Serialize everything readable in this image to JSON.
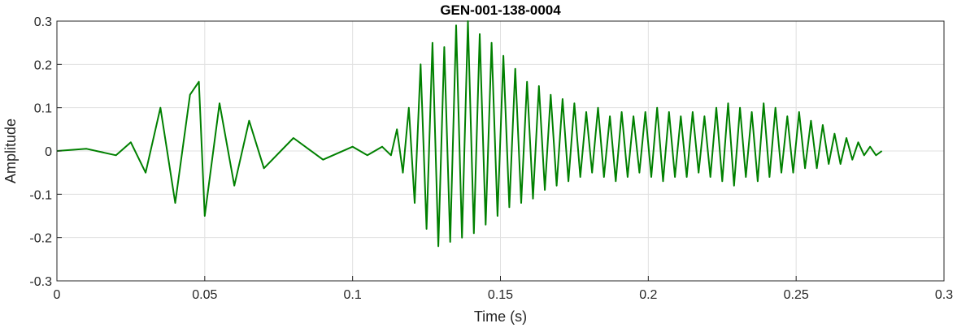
{
  "chart_data": {
    "type": "line",
    "title": "GEN-001-138-0004",
    "xlabel": "Time (s)",
    "ylabel": "Amplitude",
    "xlim": [
      0,
      0.3
    ],
    "ylim": [
      -0.3,
      0.3
    ],
    "xticks": [
      0,
      0.05,
      0.1,
      0.15,
      0.2,
      0.25,
      0.3
    ],
    "yticks": [
      -0.3,
      -0.2,
      -0.1,
      0,
      0.1,
      0.2,
      0.3
    ],
    "xtick_labels": [
      "0",
      "0.05",
      "0.1",
      "0.15",
      "0.2",
      "0.25",
      "0.3"
    ],
    "ytick_labels": [
      "-0.3",
      "-0.2",
      "-0.1",
      "0",
      "0.1",
      "0.2",
      "0.3"
    ],
    "grid": true,
    "colors": {
      "series": "#008000",
      "grid": "#e0e0e0",
      "axes": "#262626"
    },
    "series": [
      {
        "x": [
          0.0,
          0.01,
          0.02,
          0.025,
          0.03,
          0.035,
          0.04,
          0.045,
          0.048,
          0.05,
          0.055,
          0.06,
          0.065,
          0.07,
          0.08,
          0.09,
          0.1,
          0.105,
          0.11,
          0.113,
          0.115,
          0.117,
          0.119,
          0.121,
          0.123,
          0.125,
          0.127,
          0.129,
          0.131,
          0.133,
          0.135,
          0.137,
          0.139,
          0.141,
          0.143,
          0.145,
          0.147,
          0.149,
          0.151,
          0.153,
          0.155,
          0.157,
          0.159,
          0.161,
          0.163,
          0.165,
          0.167,
          0.169,
          0.171,
          0.173,
          0.175,
          0.177,
          0.179,
          0.181,
          0.183,
          0.185,
          0.187,
          0.189,
          0.191,
          0.193,
          0.195,
          0.197,
          0.199,
          0.201,
          0.203,
          0.205,
          0.207,
          0.209,
          0.211,
          0.213,
          0.215,
          0.217,
          0.219,
          0.221,
          0.223,
          0.225,
          0.227,
          0.229,
          0.231,
          0.233,
          0.235,
          0.237,
          0.239,
          0.241,
          0.243,
          0.245,
          0.247,
          0.249,
          0.251,
          0.253,
          0.255,
          0.257,
          0.259,
          0.261,
          0.263,
          0.265,
          0.267,
          0.269,
          0.271,
          0.273,
          0.275,
          0.277,
          0.279
        ],
        "y": [
          0.0,
          0.005,
          -0.01,
          0.02,
          -0.05,
          0.1,
          -0.12,
          0.13,
          0.16,
          -0.15,
          0.11,
          -0.08,
          0.07,
          -0.04,
          0.03,
          -0.02,
          0.01,
          -0.01,
          0.01,
          -0.01,
          0.05,
          -0.05,
          0.1,
          -0.12,
          0.2,
          -0.18,
          0.25,
          -0.22,
          0.24,
          -0.21,
          0.29,
          -0.2,
          0.3,
          -0.19,
          0.27,
          -0.17,
          0.25,
          -0.15,
          0.22,
          -0.13,
          0.19,
          -0.12,
          0.16,
          -0.11,
          0.15,
          -0.09,
          0.13,
          -0.08,
          0.12,
          -0.07,
          0.11,
          -0.06,
          0.09,
          -0.05,
          0.1,
          -0.06,
          0.08,
          -0.07,
          0.09,
          -0.06,
          0.08,
          -0.05,
          0.09,
          -0.06,
          0.1,
          -0.07,
          0.09,
          -0.06,
          0.08,
          -0.06,
          0.09,
          -0.05,
          0.08,
          -0.06,
          0.1,
          -0.07,
          0.11,
          -0.08,
          0.1,
          -0.06,
          0.09,
          -0.07,
          0.11,
          -0.06,
          0.1,
          -0.05,
          0.08,
          -0.05,
          0.09,
          -0.04,
          0.07,
          -0.04,
          0.06,
          -0.03,
          0.04,
          -0.03,
          0.03,
          -0.02,
          0.02,
          -0.01,
          0.01,
          -0.01,
          0.0
        ]
      }
    ]
  }
}
